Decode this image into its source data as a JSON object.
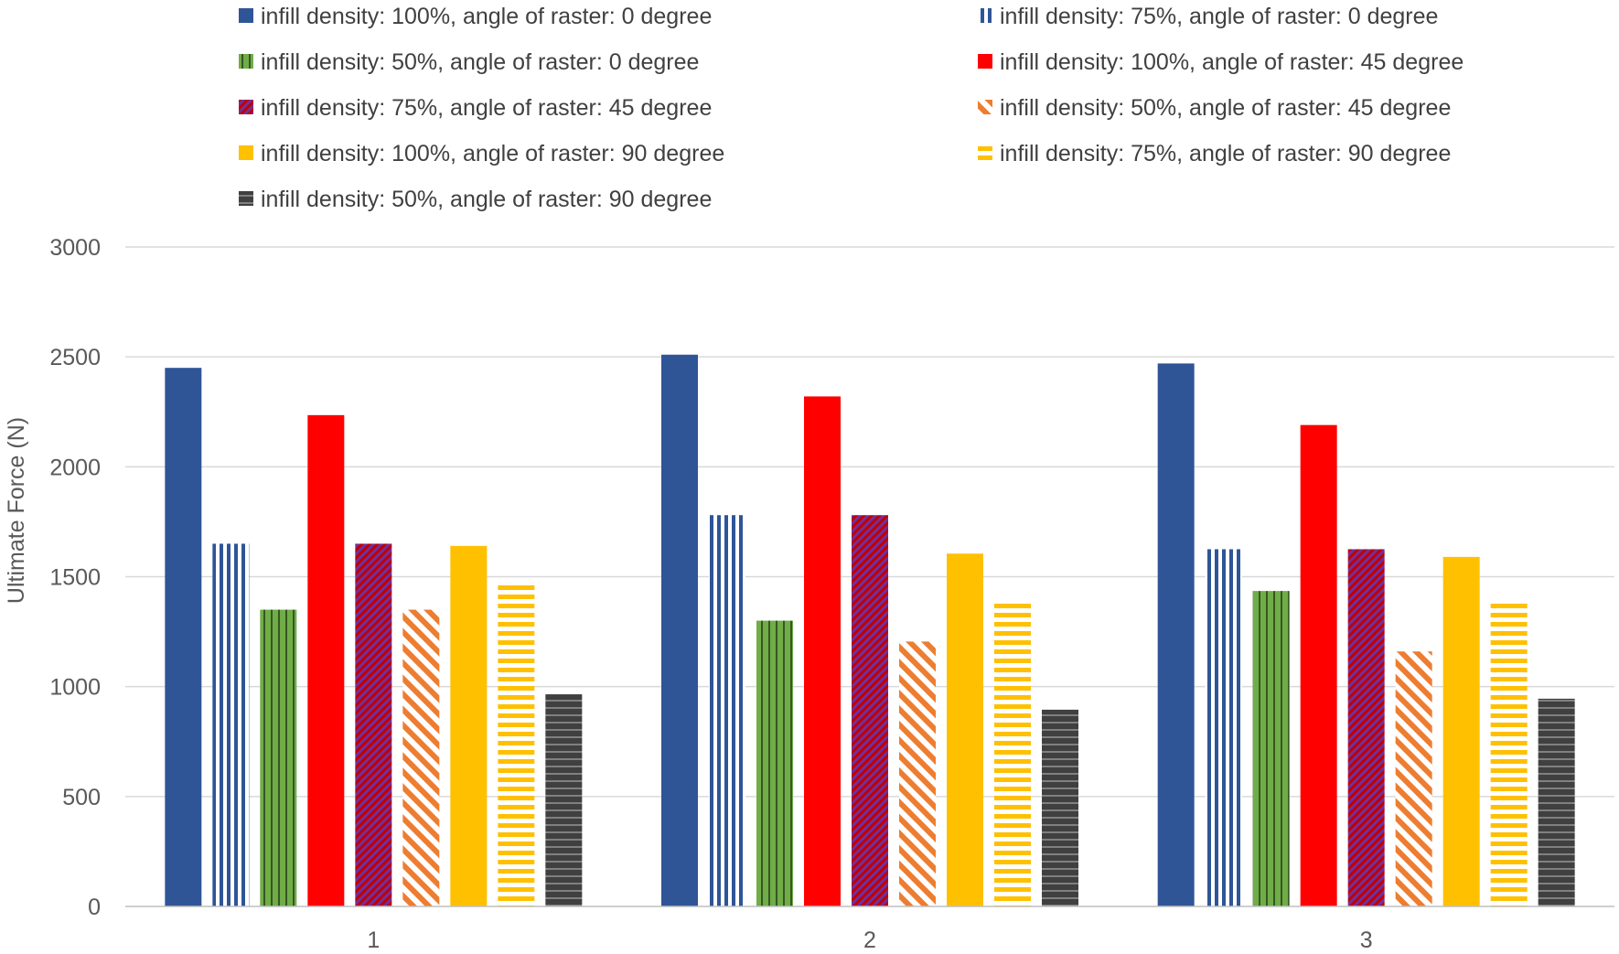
{
  "chart_data": {
    "type": "bar",
    "title": "",
    "xlabel": "",
    "ylabel": "Ultimate Force (N)",
    "ylim": [
      0,
      3000
    ],
    "yticks": [
      0,
      500,
      1000,
      1500,
      2000,
      2500,
      3000
    ],
    "grid": true,
    "legend_position": "top",
    "categories": [
      "1",
      "2",
      "3"
    ],
    "series": [
      {
        "name": "infill density: 100%, angle of raster: 0 degree",
        "values": [
          2450,
          2510,
          2470
        ],
        "color": "#2F5597",
        "pattern": "solid"
      },
      {
        "name": "infill density: 75%, angle of raster: 0 degree",
        "values": [
          1650,
          1780,
          1625
        ],
        "color": "#2F5597",
        "pattern": "vertical-stripes"
      },
      {
        "name": "infill density: 50%, angle of raster: 0 degree",
        "values": [
          1350,
          1300,
          1435
        ],
        "color": "#70AD47",
        "pattern": "vertical-stripes-dark"
      },
      {
        "name": "infill density: 100%, angle of raster: 45 degree",
        "values": [
          2235,
          2320,
          2190
        ],
        "color": "#FF0000",
        "pattern": "solid"
      },
      {
        "name": "infill density: 75%, angle of raster: 45 degree",
        "values": [
          1650,
          1780,
          1625
        ],
        "color": "#C00000",
        "pattern": "diagonal-dense"
      },
      {
        "name": "infill density: 50%, angle of raster: 45 degree",
        "values": [
          1350,
          1205,
          1160
        ],
        "color": "#ED7D31",
        "pattern": "diagonal-sparse"
      },
      {
        "name": "infill density: 100%, angle of raster: 90 degree",
        "values": [
          1640,
          1605,
          1590
        ],
        "color": "#FFC000",
        "pattern": "solid"
      },
      {
        "name": "infill density: 75%, angle of raster: 90 degree",
        "values": [
          1470,
          1385,
          1380
        ],
        "color": "#FFC000",
        "pattern": "horizontal-stripes"
      },
      {
        "name": "infill density: 50%, angle of raster: 90 degree",
        "values": [
          965,
          895,
          945
        ],
        "color": "#404040",
        "pattern": "horizontal-stripes-dark"
      }
    ]
  }
}
